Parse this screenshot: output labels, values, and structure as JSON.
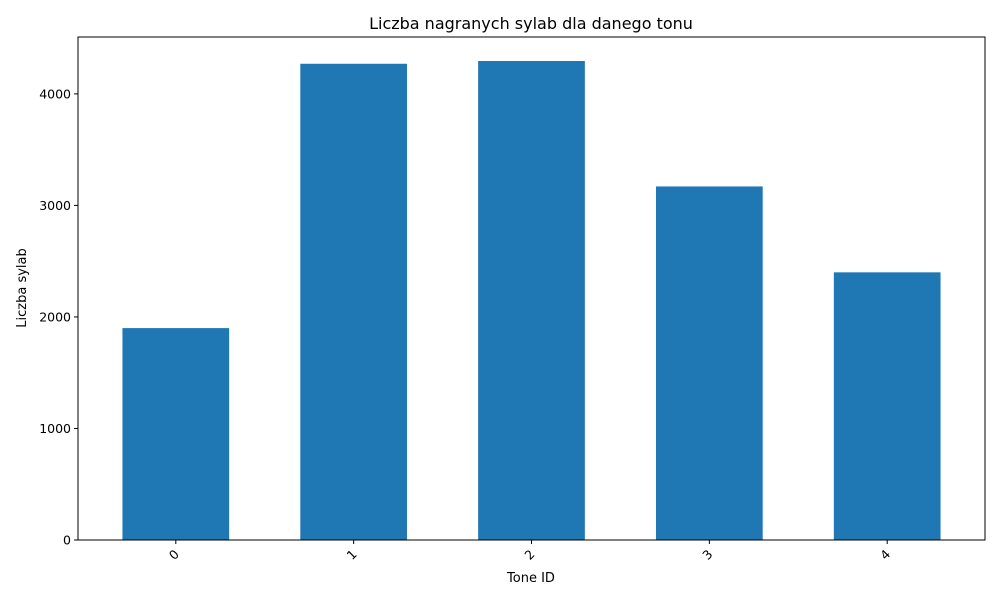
{
  "chart_data": {
    "type": "bar",
    "title": "Liczba nagranych sylab dla danego tonu",
    "xlabel": "Tone ID",
    "ylabel": "Liczba sylab",
    "categories": [
      "0",
      "1",
      "2",
      "3",
      "4"
    ],
    "values": [
      1900,
      4270,
      4295,
      3170,
      2400
    ],
    "ylim": [
      0,
      4510
    ],
    "yticks": [
      0,
      1000,
      2000,
      3000,
      4000
    ],
    "x_tick_rotation_deg": 45,
    "grid": false,
    "legend": "none",
    "bar_color": "#1f77b4"
  }
}
